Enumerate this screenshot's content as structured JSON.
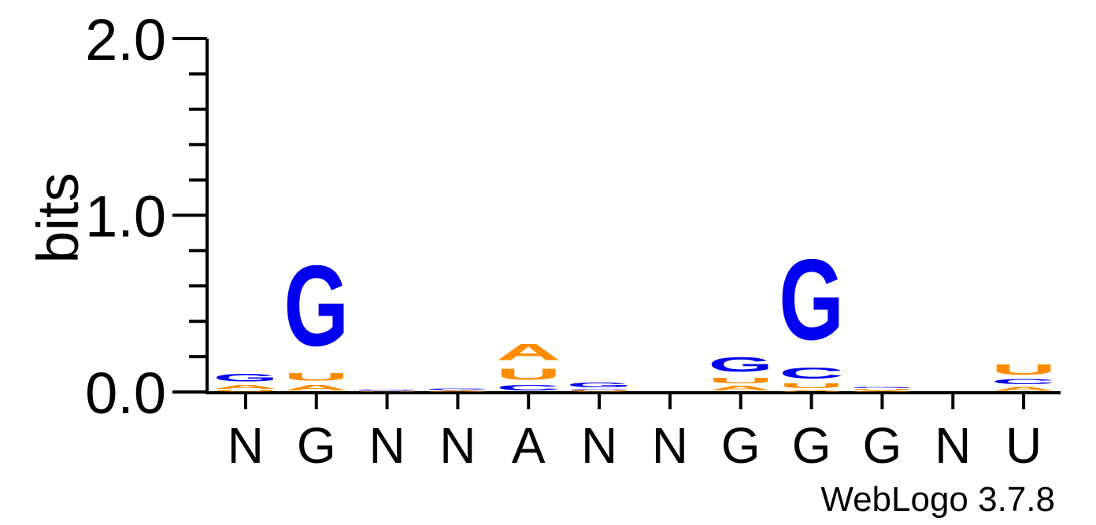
{
  "chart_data": {
    "type": "sequence-logo",
    "ylabel": "bits",
    "ylim": [
      0,
      2.0
    ],
    "y_ticks": [
      "0.0",
      "1.0",
      "2.0"
    ],
    "positions": [
      "N",
      "G",
      "N",
      "N",
      "A",
      "N",
      "N",
      "G",
      "G",
      "G",
      "N",
      "U"
    ],
    "colors": {
      "G": "#0000ee",
      "C": "#0000ee",
      "A": "#ff8c00",
      "U": "#ff8c00"
    },
    "stacks": [
      [
        {
          "letter": "U",
          "bits": 0.012
        },
        {
          "letter": "A",
          "bits": 0.035
        },
        {
          "letter": "G",
          "bits": 0.07
        }
      ],
      [
        {
          "letter": "A",
          "bits": 0.05
        },
        {
          "letter": "U",
          "bits": 0.07
        },
        {
          "letter": "G",
          "bits": 0.73
        }
      ],
      [
        {
          "letter": "U",
          "bits": 0.006
        },
        {
          "letter": "G",
          "bits": 0.008
        }
      ],
      [
        {
          "letter": "A",
          "bits": 0.008
        },
        {
          "letter": "G",
          "bits": 0.012
        }
      ],
      [
        {
          "letter": "C",
          "bits": 0.05
        },
        {
          "letter": "U",
          "bits": 0.1
        },
        {
          "letter": "A",
          "bits": 0.15
        }
      ],
      [
        {
          "letter": "U",
          "bits": 0.008
        },
        {
          "letter": "C",
          "bits": 0.01
        },
        {
          "letter": "G",
          "bits": 0.04
        }
      ],
      [],
      [
        {
          "letter": "A",
          "bits": 0.04
        },
        {
          "letter": "U",
          "bits": 0.05
        },
        {
          "letter": "G",
          "bits": 0.13
        }
      ],
      [
        {
          "letter": "A",
          "bits": 0.015
        },
        {
          "letter": "U",
          "bits": 0.04
        },
        {
          "letter": "C",
          "bits": 0.1
        },
        {
          "letter": "G",
          "bits": 0.73
        }
      ],
      [
        {
          "letter": "A",
          "bits": 0.01
        },
        {
          "letter": "U",
          "bits": 0.01
        },
        {
          "letter": "G",
          "bits": 0.01
        }
      ],
      [],
      [
        {
          "letter": "A",
          "bits": 0.035
        },
        {
          "letter": "C",
          "bits": 0.045
        },
        {
          "letter": "U",
          "bits": 0.09
        }
      ]
    ]
  },
  "footer": {
    "credit": "WebLogo 3.7.8"
  }
}
